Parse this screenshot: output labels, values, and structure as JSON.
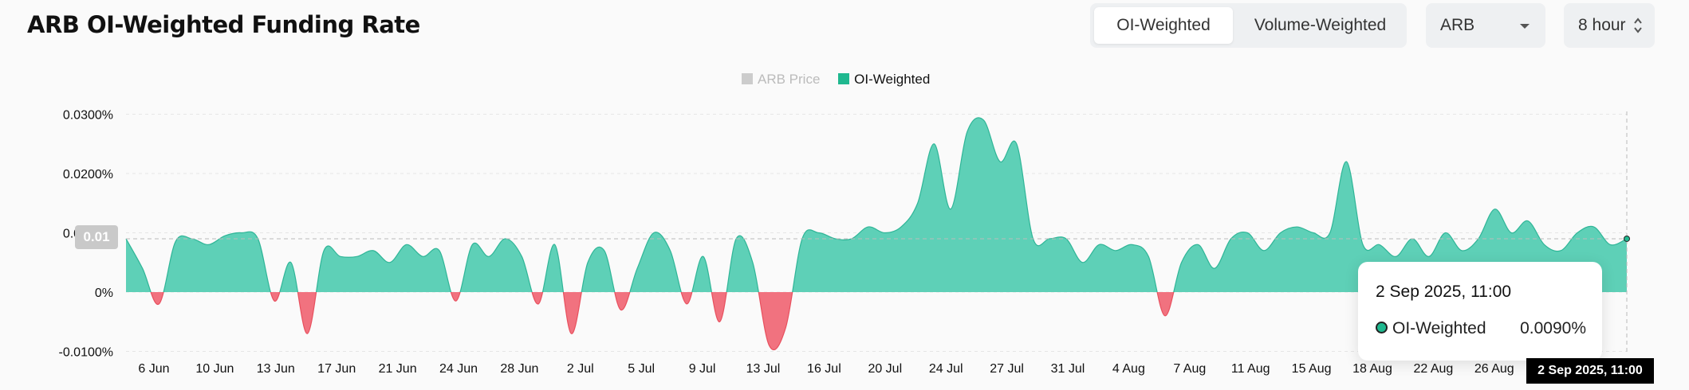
{
  "header": {
    "title": "ARB OI-Weighted Funding Rate",
    "weighting_options": [
      "OI-Weighted",
      "Volume-Weighted"
    ],
    "active_weighting": "OI-Weighted",
    "symbol": "ARB",
    "interval": "8 hour"
  },
  "legend": {
    "items": [
      {
        "label": "ARB Price",
        "enabled": false
      },
      {
        "label": "OI-Weighted",
        "enabled": true
      }
    ]
  },
  "tooltip": {
    "date": "2 Sep 2025, 11:00",
    "series": "OI-Weighted",
    "value": "0.0090%"
  },
  "crosshair": {
    "x_label": "2 Sep 2025, 11:00",
    "y_label": "0.01"
  },
  "colors": {
    "positive": "#5ed0b7",
    "negative": "#f1727f",
    "accent": "#1fb88f"
  },
  "chart_data": {
    "type": "area",
    "title": "ARB OI-Weighted Funding Rate",
    "ylabel": "",
    "xlabel": "",
    "y_unit": "%",
    "ylim": [
      -0.0105,
      0.031
    ],
    "yticks": [
      "-0.0100%",
      "0%",
      "0.0100%",
      "0.0200%",
      "0.0300%"
    ],
    "ytick_values": [
      -0.01,
      0,
      0.01,
      0.02,
      0.03
    ],
    "xticks": [
      "6 Jun",
      "10 Jun",
      "13 Jun",
      "17 Jun",
      "21 Jun",
      "24 Jun",
      "28 Jun",
      "2 Jul",
      "5 Jul",
      "9 Jul",
      "13 Jul",
      "16 Jul",
      "20 Jul",
      "24 Jul",
      "27 Jul",
      "31 Jul",
      "4 Aug",
      "7 Aug",
      "11 Aug",
      "15 Aug",
      "18 Aug",
      "22 Aug",
      "26 Aug",
      "2 Sep 2025, 11:00"
    ],
    "grid": true,
    "legend_position": "top-center",
    "series": [
      {
        "name": "OI-Weighted",
        "x": [
          "3 Jun",
          "4 Jun",
          "5 Jun",
          "6 Jun",
          "7 Jun",
          "8 Jun",
          "9 Jun",
          "10 Jun",
          "11 Jun",
          "12 Jun",
          "13 Jun",
          "14 Jun",
          "15 Jun",
          "16 Jun",
          "17 Jun",
          "18 Jun",
          "19 Jun",
          "20 Jun",
          "21 Jun",
          "22 Jun",
          "23 Jun",
          "24 Jun",
          "25 Jun",
          "26 Jun",
          "27 Jun",
          "28 Jun",
          "29 Jun",
          "30 Jun",
          "1 Jul",
          "2 Jul",
          "3 Jul",
          "4 Jul",
          "5 Jul",
          "6 Jul",
          "7 Jul",
          "8 Jul",
          "9 Jul",
          "10 Jul",
          "11 Jul",
          "12 Jul",
          "13 Jul",
          "14 Jul",
          "15 Jul",
          "16 Jul",
          "17 Jul",
          "18 Jul",
          "19 Jul",
          "20 Jul",
          "21 Jul",
          "22 Jul",
          "23 Jul",
          "24 Jul",
          "25 Jul",
          "26 Jul",
          "27 Jul",
          "28 Jul",
          "29 Jul",
          "30 Jul",
          "31 Jul",
          "1 Aug",
          "2 Aug",
          "3 Aug",
          "4 Aug",
          "5 Aug",
          "6 Aug",
          "7 Aug",
          "8 Aug",
          "9 Aug",
          "10 Aug",
          "11 Aug",
          "12 Aug",
          "13 Aug",
          "14 Aug",
          "15 Aug",
          "16 Aug",
          "17 Aug",
          "18 Aug",
          "19 Aug",
          "20 Aug",
          "21 Aug",
          "22 Aug",
          "23 Aug",
          "24 Aug",
          "25 Aug",
          "26 Aug",
          "27 Aug",
          "28 Aug",
          "29 Aug",
          "30 Aug",
          "31 Aug",
          "1 Sep",
          "2 Sep"
        ],
        "values": [
          0.009,
          0.004,
          -0.002,
          0.0085,
          0.009,
          0.008,
          0.0095,
          0.01,
          0.009,
          -0.0015,
          0.005,
          -0.007,
          0.007,
          0.006,
          0.006,
          0.007,
          0.005,
          0.008,
          0.006,
          0.007,
          -0.0015,
          0.008,
          0.006,
          0.009,
          0.006,
          -0.002,
          0.008,
          -0.007,
          0.005,
          0.007,
          -0.003,
          0.004,
          0.01,
          0.007,
          -0.002,
          0.006,
          -0.005,
          0.009,
          0.005,
          -0.009,
          -0.006,
          0.009,
          0.01,
          0.009,
          0.009,
          0.011,
          0.01,
          0.011,
          0.015,
          0.025,
          0.014,
          0.027,
          0.029,
          0.022,
          0.025,
          0.009,
          0.009,
          0.009,
          0.005,
          0.008,
          0.007,
          0.008,
          0.006,
          -0.004,
          0.005,
          0.008,
          0.004,
          0.009,
          0.01,
          0.007,
          0.01,
          0.011,
          0.01,
          0.01,
          0.022,
          0.008,
          0.008,
          0.006,
          0.009,
          0.006,
          0.01,
          0.007,
          0.009,
          0.014,
          0.01,
          0.012,
          0.008,
          0.007,
          0.01,
          0.011,
          0.008,
          0.009
        ]
      }
    ]
  }
}
